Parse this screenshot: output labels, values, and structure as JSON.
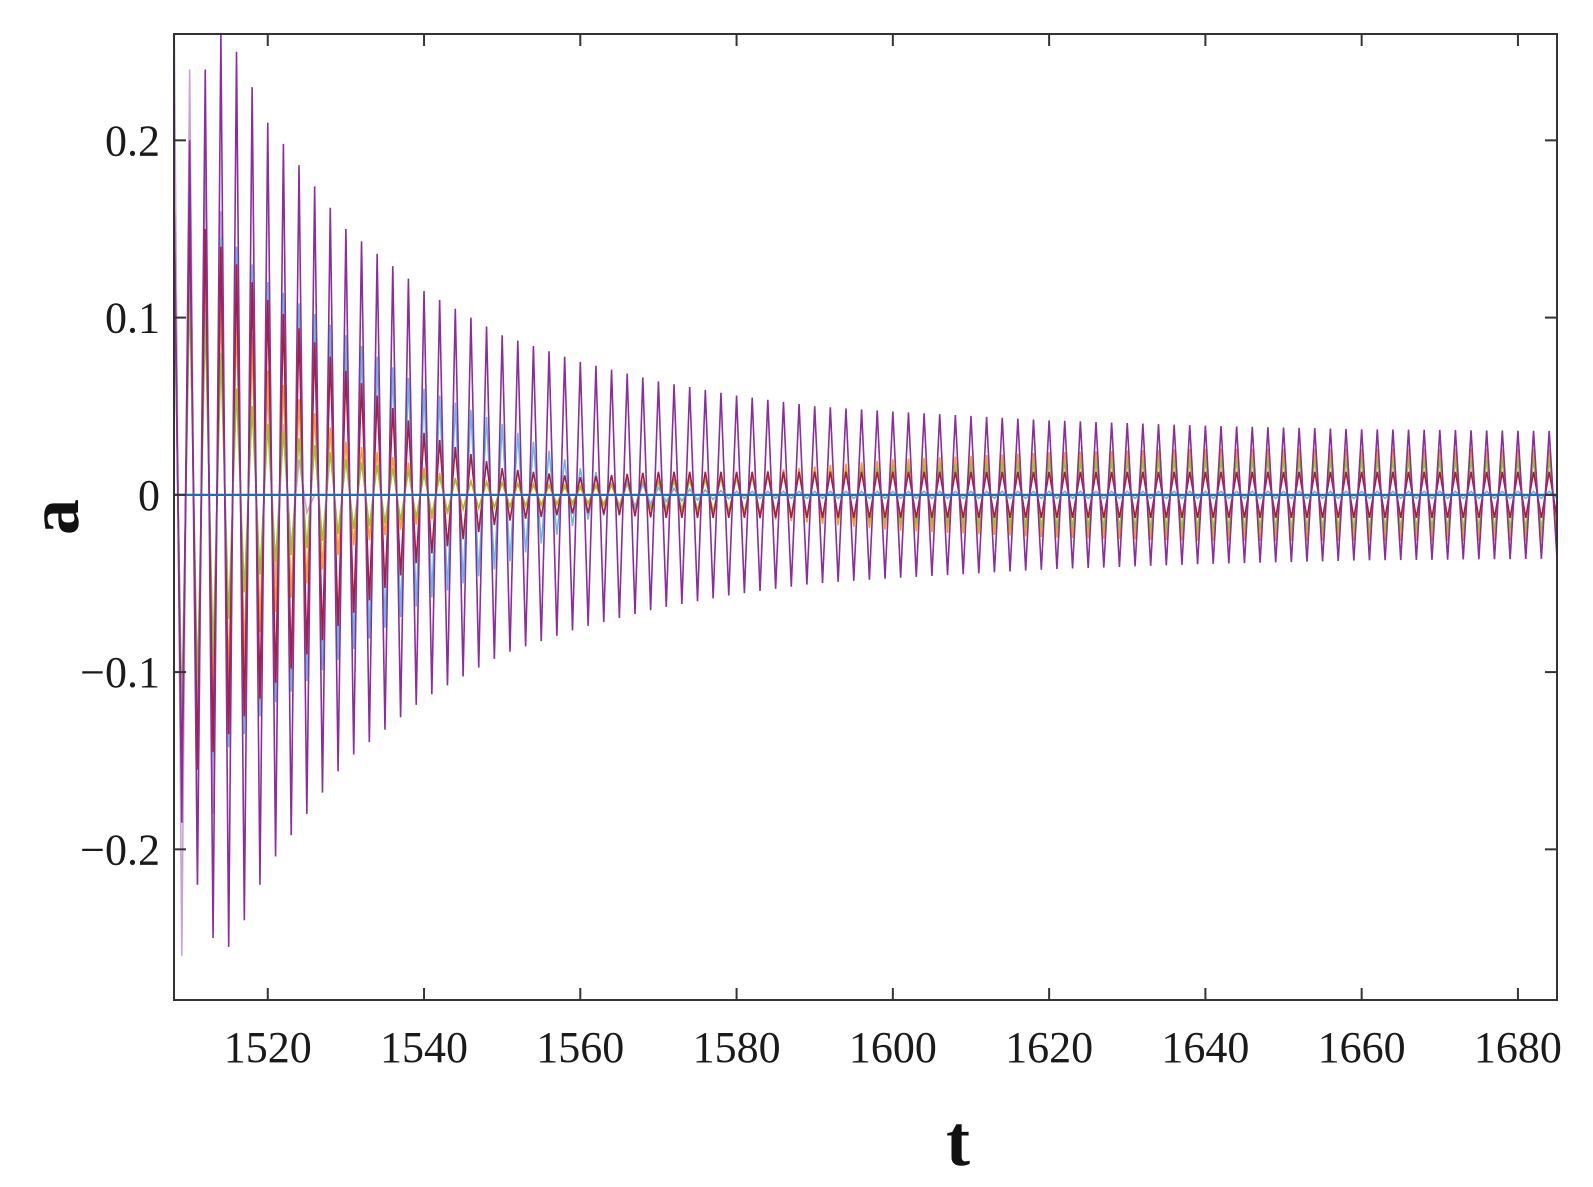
{
  "chart_data": {
    "type": "line",
    "title": "",
    "xlabel": "t",
    "ylabel": "a",
    "xlim": [
      1508,
      1685
    ],
    "ylim": [
      -0.285,
      0.26
    ],
    "xticks": [
      1520,
      1540,
      1560,
      1580,
      1600,
      1620,
      1640,
      1660,
      1680
    ],
    "yticks": [
      -0.2,
      -0.1,
      0,
      0.1,
      0.2
    ],
    "xtick_labels": [
      "1520",
      "1540",
      "1560",
      "1580",
      "1600",
      "1620",
      "1640",
      "1660",
      "1680"
    ],
    "ytick_labels": [
      "−0.2",
      "−0.1",
      "0",
      "0.1",
      "0.2"
    ],
    "grid": false,
    "legend": "none",
    "oscillation_period": 2.0,
    "series": [
      {
        "color": "#c8a2d4",
        "envelope": {
          "t": [
            1508,
            1512,
            1516,
            1520,
            1526
          ],
          "amplitude": [
            0.28,
            0.2,
            0.12,
            0.06,
            0.0
          ]
        }
      },
      {
        "color": "#f0a030",
        "envelope": {
          "t": [
            1508,
            1512,
            1516,
            1520,
            1530,
            1545,
            1560,
            1580,
            1600,
            1620,
            1640,
            1660,
            1685
          ],
          "amplitude": [
            0.14,
            0.12,
            0.1,
            0.07,
            0.03,
            0.008,
            0.004,
            0.012,
            0.02,
            0.024,
            0.026,
            0.026,
            0.026
          ]
        }
      },
      {
        "color": "#9bbf35",
        "envelope": {
          "t": [
            1508,
            1512,
            1516,
            1520,
            1530,
            1545,
            1560,
            1580,
            1600,
            1620,
            1640,
            1660,
            1685
          ],
          "amplitude": [
            0.13,
            0.1,
            0.06,
            0.04,
            0.02,
            0.008,
            0.005,
            0.01,
            0.016,
            0.019,
            0.02,
            0.02,
            0.02
          ]
        }
      },
      {
        "color": "#6ab8e0",
        "envelope": {
          "t": [
            1508,
            1512,
            1516,
            1520,
            1530,
            1540,
            1550,
            1560,
            1570,
            1580,
            1600,
            1620,
            1640,
            1660,
            1685
          ],
          "amplitude": [
            0.15,
            0.15,
            0.14,
            0.12,
            0.09,
            0.06,
            0.04,
            0.015,
            0.004,
            0.002,
            0.002,
            0.002,
            0.002,
            0.002,
            0.002
          ]
        }
      },
      {
        "color": "#a6203a",
        "envelope": {
          "t": [
            1508,
            1512,
            1516,
            1520,
            1530,
            1540,
            1550,
            1560,
            1570,
            1580,
            1600,
            1620,
            1640,
            1660,
            1685
          ],
          "amplitude": [
            0.17,
            0.15,
            0.13,
            0.11,
            0.07,
            0.035,
            0.015,
            0.01,
            0.013,
            0.013,
            0.013,
            0.013,
            0.013,
            0.013,
            0.013
          ]
        }
      },
      {
        "color": "#8a2e9c",
        "envelope": {
          "t": [
            1508,
            1510,
            1512,
            1514,
            1516,
            1520,
            1525,
            1530,
            1540,
            1550,
            1560,
            1570,
            1580,
            1590,
            1600,
            1620,
            1640,
            1660,
            1685
          ],
          "amplitude": [
            0.17,
            0.2,
            0.24,
            0.26,
            0.25,
            0.21,
            0.18,
            0.15,
            0.115,
            0.09,
            0.075,
            0.064,
            0.056,
            0.05,
            0.047,
            0.042,
            0.039,
            0.037,
            0.036
          ]
        }
      },
      {
        "color": "#1f6fb0",
        "envelope": {
          "t": [
            1508,
            1685
          ],
          "amplitude": [
            0.0,
            0.0
          ]
        }
      }
    ]
  }
}
